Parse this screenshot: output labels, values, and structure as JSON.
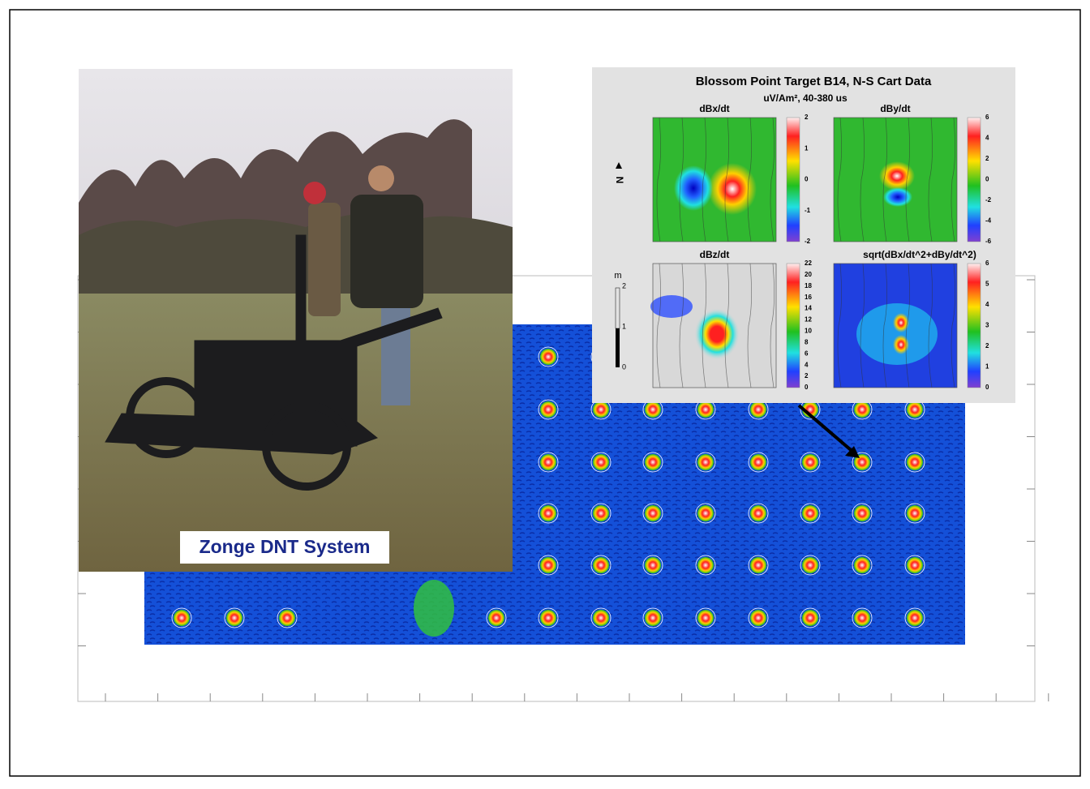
{
  "caption": "Zonge DNT System",
  "inset": {
    "title": "Blossom Point Target B14, N-S Cart Data",
    "subtitle": "uV/Am², 40-380 us",
    "north": "N",
    "scale": {
      "unit": "m",
      "ticks": [
        "2",
        "1",
        "0"
      ]
    },
    "panels": [
      {
        "title": "dBx/dt",
        "colorbar_ticks": [
          "2",
          "1",
          "0",
          "-1",
          "-2"
        ]
      },
      {
        "title": "dBy/dt",
        "colorbar_ticks": [
          "6",
          "4",
          "2",
          "0",
          "-2",
          "-4",
          "-6"
        ]
      },
      {
        "title": "dBz/dt",
        "colorbar_ticks": [
          "22",
          "20",
          "18",
          "16",
          "14",
          "12",
          "10",
          "8",
          "6",
          "4",
          "2",
          "0"
        ]
      },
      {
        "title": "sqrt(dBx/dt^2+dBy/dt^2)",
        "colorbar_ticks": [
          "6",
          "5",
          "4",
          "3",
          "2",
          "1",
          "0"
        ]
      }
    ]
  }
}
